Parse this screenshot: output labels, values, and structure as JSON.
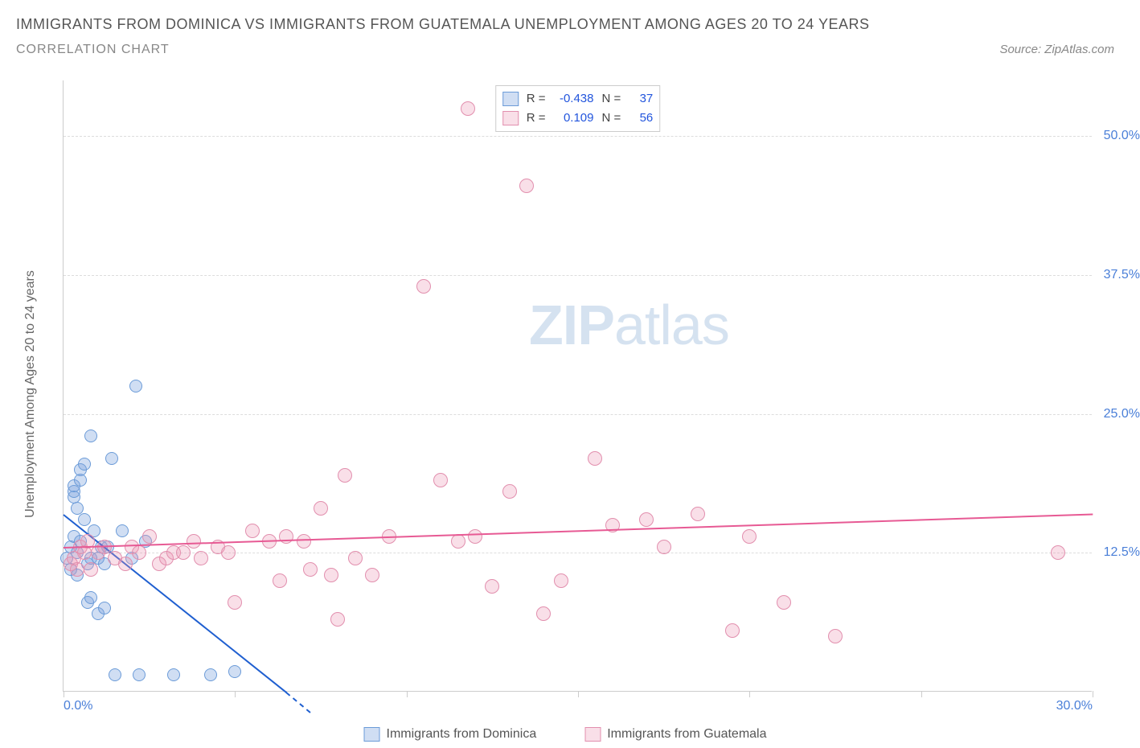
{
  "title": "IMMIGRANTS FROM DOMINICA VS IMMIGRANTS FROM GUATEMALA UNEMPLOYMENT AMONG AGES 20 TO 24 YEARS",
  "subtitle": "CORRELATION CHART",
  "source": "Source: ZipAtlas.com",
  "y_axis_label": "Unemployment Among Ages 20 to 24 years",
  "watermark_a": "ZIP",
  "watermark_b": "atlas",
  "chart": {
    "type": "scatter",
    "xlim": [
      0,
      30
    ],
    "ylim": [
      0,
      55
    ],
    "x_ticks": [
      0,
      5,
      10,
      15,
      20,
      25,
      30
    ],
    "x_tick_labels": {
      "0": "0.0%",
      "30": "30.0%"
    },
    "y_gridlines": [
      12.5,
      25.0,
      37.5,
      50.0
    ],
    "y_tick_labels": [
      "12.5%",
      "25.0%",
      "37.5%",
      "50.0%"
    ],
    "background_color": "#ffffff",
    "grid_color": "#dddddd",
    "axis_color": "#cccccc",
    "tick_label_color": "#4a7fd8"
  },
  "series": [
    {
      "name": "Immigrants from Dominica",
      "marker_fill": "rgba(120,160,220,0.35)",
      "marker_stroke": "#6b9bd8",
      "marker_radius": 8,
      "line_color": "#1f5fd0",
      "stats": {
        "R": "-0.438",
        "N": "37"
      },
      "trend": {
        "x1": 0,
        "y1": 16.0,
        "x2": 6.5,
        "y2": 0
      },
      "trend_dash": {
        "x1": 6.5,
        "y1": 0,
        "x2": 7.2,
        "y2": -1.8
      },
      "points": [
        [
          0.1,
          12.0
        ],
        [
          0.2,
          11.0
        ],
        [
          0.2,
          13.0
        ],
        [
          0.3,
          14.0
        ],
        [
          0.3,
          17.5
        ],
        [
          0.3,
          18.0
        ],
        [
          0.3,
          18.5
        ],
        [
          0.4,
          16.5
        ],
        [
          0.4,
          12.5
        ],
        [
          0.4,
          10.5
        ],
        [
          0.5,
          19.0
        ],
        [
          0.5,
          20.0
        ],
        [
          0.5,
          13.5
        ],
        [
          0.6,
          15.5
        ],
        [
          0.6,
          20.5
        ],
        [
          0.7,
          11.5
        ],
        [
          0.7,
          8.0
        ],
        [
          0.8,
          23.0
        ],
        [
          0.8,
          12.0
        ],
        [
          0.8,
          8.5
        ],
        [
          0.9,
          14.5
        ],
        [
          1.0,
          7.0
        ],
        [
          1.0,
          12.0
        ],
        [
          1.1,
          13.0
        ],
        [
          1.2,
          7.5
        ],
        [
          1.2,
          11.5
        ],
        [
          1.3,
          13.0
        ],
        [
          1.4,
          21.0
        ],
        [
          1.5,
          1.5
        ],
        [
          1.7,
          14.5
        ],
        [
          2.0,
          12.0
        ],
        [
          2.1,
          27.5
        ],
        [
          2.2,
          1.5
        ],
        [
          2.4,
          13.5
        ],
        [
          3.2,
          1.5
        ],
        [
          4.3,
          1.5
        ],
        [
          5.0,
          1.8
        ]
      ]
    },
    {
      "name": "Immigrants from Guatemala",
      "marker_fill": "rgba(235,150,180,0.30)",
      "marker_stroke": "#e28fae",
      "marker_radius": 9,
      "line_color": "#e75a94",
      "stats": {
        "R": "0.109",
        "N": "56"
      },
      "trend": {
        "x1": 0,
        "y1": 13.0,
        "x2": 30,
        "y2": 16.0
      },
      "points": [
        [
          0.2,
          11.5
        ],
        [
          0.3,
          12.0
        ],
        [
          0.4,
          11.0
        ],
        [
          0.5,
          13.0
        ],
        [
          0.6,
          12.5
        ],
        [
          0.7,
          13.5
        ],
        [
          0.8,
          11.0
        ],
        [
          1.0,
          12.5
        ],
        [
          1.2,
          13.0
        ],
        [
          1.5,
          12.0
        ],
        [
          1.8,
          11.5
        ],
        [
          2.0,
          13.0
        ],
        [
          2.2,
          12.5
        ],
        [
          2.5,
          14.0
        ],
        [
          2.8,
          11.5
        ],
        [
          3.0,
          12.0
        ],
        [
          3.2,
          12.5
        ],
        [
          3.5,
          12.5
        ],
        [
          3.8,
          13.5
        ],
        [
          4.0,
          12.0
        ],
        [
          4.5,
          13.0
        ],
        [
          4.8,
          12.5
        ],
        [
          5.0,
          8.0
        ],
        [
          5.5,
          14.5
        ],
        [
          6.0,
          13.5
        ],
        [
          6.3,
          10.0
        ],
        [
          6.5,
          14.0
        ],
        [
          7.0,
          13.5
        ],
        [
          7.2,
          11.0
        ],
        [
          7.5,
          16.5
        ],
        [
          7.8,
          10.5
        ],
        [
          8.0,
          6.5
        ],
        [
          8.2,
          19.5
        ],
        [
          8.5,
          12.0
        ],
        [
          9.0,
          10.5
        ],
        [
          9.5,
          14.0
        ],
        [
          10.5,
          36.5
        ],
        [
          11.0,
          19.0
        ],
        [
          11.5,
          13.5
        ],
        [
          11.8,
          52.5
        ],
        [
          12.0,
          14.0
        ],
        [
          12.5,
          9.5
        ],
        [
          13.0,
          18.0
        ],
        [
          13.5,
          45.5
        ],
        [
          14.0,
          7.0
        ],
        [
          14.5,
          10.0
        ],
        [
          15.5,
          21.0
        ],
        [
          16.0,
          15.0
        ],
        [
          17.0,
          15.5
        ],
        [
          17.5,
          13.0
        ],
        [
          18.5,
          16.0
        ],
        [
          19.5,
          5.5
        ],
        [
          20.0,
          14.0
        ],
        [
          21.0,
          8.0
        ],
        [
          22.5,
          5.0
        ],
        [
          29.0,
          12.5
        ]
      ]
    }
  ],
  "bottom_legend": [
    {
      "swatch_fill": "rgba(120,160,220,0.35)",
      "swatch_stroke": "#6b9bd8",
      "label": "Immigrants from Dominica"
    },
    {
      "swatch_fill": "rgba(235,150,180,0.30)",
      "swatch_stroke": "#e28fae",
      "label": "Immigrants from Guatemala"
    }
  ],
  "stats_box": {
    "rows": [
      {
        "swatch_fill": "rgba(120,160,220,0.35)",
        "swatch_stroke": "#6b9bd8",
        "R": "-0.438",
        "N": "37"
      },
      {
        "swatch_fill": "rgba(235,150,180,0.30)",
        "swatch_stroke": "#e28fae",
        "R": "0.109",
        "N": "56"
      }
    ]
  }
}
